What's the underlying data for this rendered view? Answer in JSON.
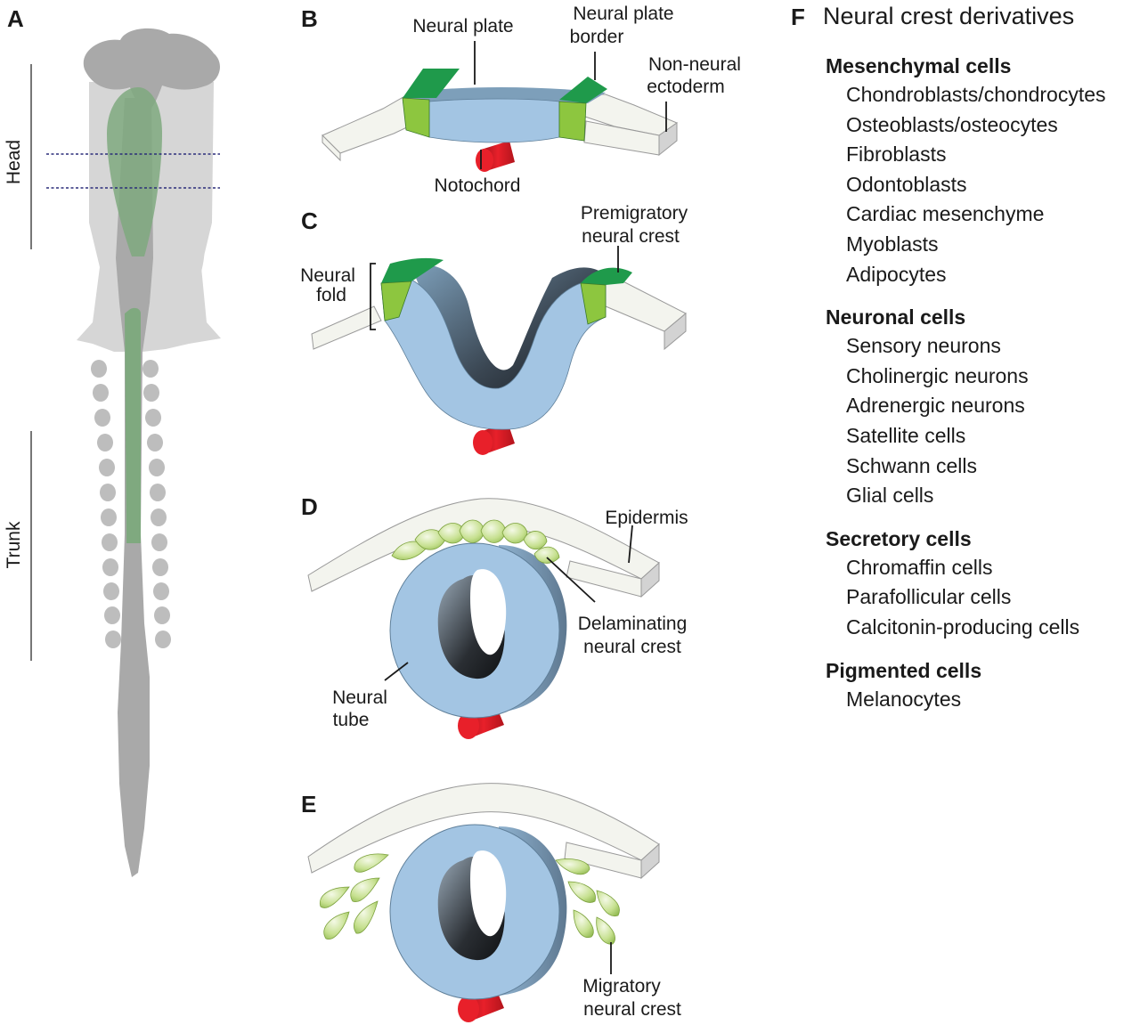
{
  "panels": {
    "a": {
      "letter": "A",
      "head_label": "Head",
      "trunk_label": "Trunk"
    },
    "b": {
      "letter": "B",
      "neural_plate": "Neural plate",
      "border_line1": "Neural plate",
      "border_line2": "border",
      "nonneural_line1": "Non-neural",
      "nonneural_line2": "ectoderm",
      "notochord": "Notochord"
    },
    "c": {
      "letter": "C",
      "premig_line1": "Premigratory",
      "premig_line2": "neural crest",
      "fold_line1": "Neural",
      "fold_line2": "fold"
    },
    "d": {
      "letter": "D",
      "epidermis": "Epidermis",
      "delam_line1": "Delaminating",
      "delam_line2": "neural crest",
      "tube_line1": "Neural",
      "tube_line2": "tube"
    },
    "e": {
      "letter": "E",
      "migr_line1": "Migratory",
      "migr_line2": "neural crest"
    }
  },
  "derivatives": {
    "letter": "F",
    "title": "Neural crest derivatives",
    "groups": [
      {
        "title": "Mesenchymal cells",
        "items": [
          "Chondroblasts/chondrocytes",
          "Osteoblasts/osteocytes",
          "Fibroblasts",
          "Odontoblasts",
          "Cardiac mesenchyme",
          "Myoblasts",
          "Adipocytes"
        ]
      },
      {
        "title": "Neuronal cells",
        "items": [
          "Sensory neurons",
          "Cholinergic neurons",
          "Adrenergic neurons",
          "Satellite cells",
          "Schwann cells",
          "Glial cells"
        ]
      },
      {
        "title": "Secretory cells",
        "items": [
          "Chromaffin cells",
          "Parafollicular cells",
          "Calcitonin-producing cells"
        ]
      },
      {
        "title": "Pigmented cells",
        "items": [
          "Melanocytes"
        ]
      }
    ]
  },
  "colors": {
    "neural_plate": "#a3c5e3",
    "neural_plate_top": "#7d9fba",
    "border_dark_green": "#1f9a4b",
    "border_light_green": "#8dc63f",
    "ectoderm": "#f3f4ee",
    "notochord": "#e8202a",
    "embryo_light": "#d6d6d6",
    "embryo_dark": "#a9a9a9",
    "embryo_green": "#7fa97f",
    "crest_cell": "#b5d77a"
  }
}
